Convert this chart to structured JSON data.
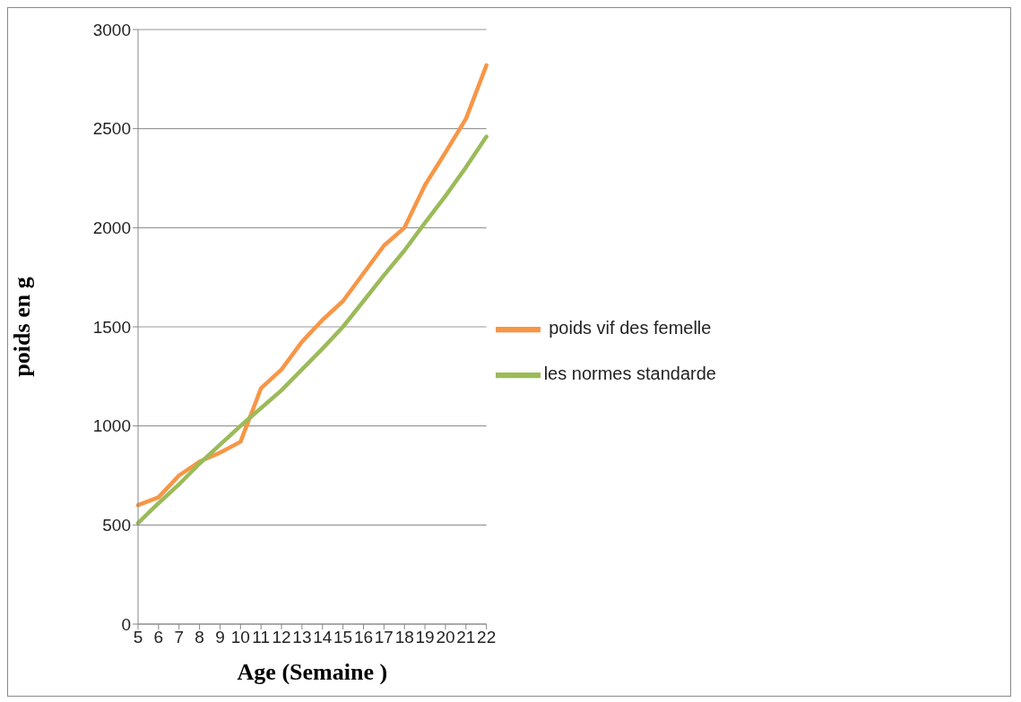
{
  "chart_data": {
    "type": "line",
    "xlabel": "Age (Semaine )",
    "ylabel": "poids en g",
    "categories": [
      "5",
      "6",
      "7",
      "8",
      "9",
      "10",
      "11",
      "12",
      "13",
      "14",
      "15",
      "16",
      "17",
      "18",
      "19",
      "20",
      "21",
      "22"
    ],
    "series": [
      {
        "name": " poids vif des femelle",
        "color": "#f79646",
        "values": [
          600,
          640,
          750,
          820,
          865,
          920,
          1190,
          1285,
          1425,
          1535,
          1630,
          1770,
          1910,
          2000,
          2215,
          2380,
          2550,
          2820
        ]
      },
      {
        "name": "les normes standarde",
        "color": "#9bbb59",
        "values": [
          510,
          610,
          705,
          810,
          905,
          1000,
          1090,
          1180,
          1285,
          1390,
          1500,
          1630,
          1760,
          1885,
          2025,
          2160,
          2305,
          2460
        ]
      }
    ],
    "ylim": [
      0,
      3000
    ],
    "yticks": [
      0,
      500,
      1000,
      1500,
      2000,
      2500,
      3000
    ],
    "grid": "y",
    "legend": "right",
    "marker": "none",
    "line_style": "solid"
  }
}
